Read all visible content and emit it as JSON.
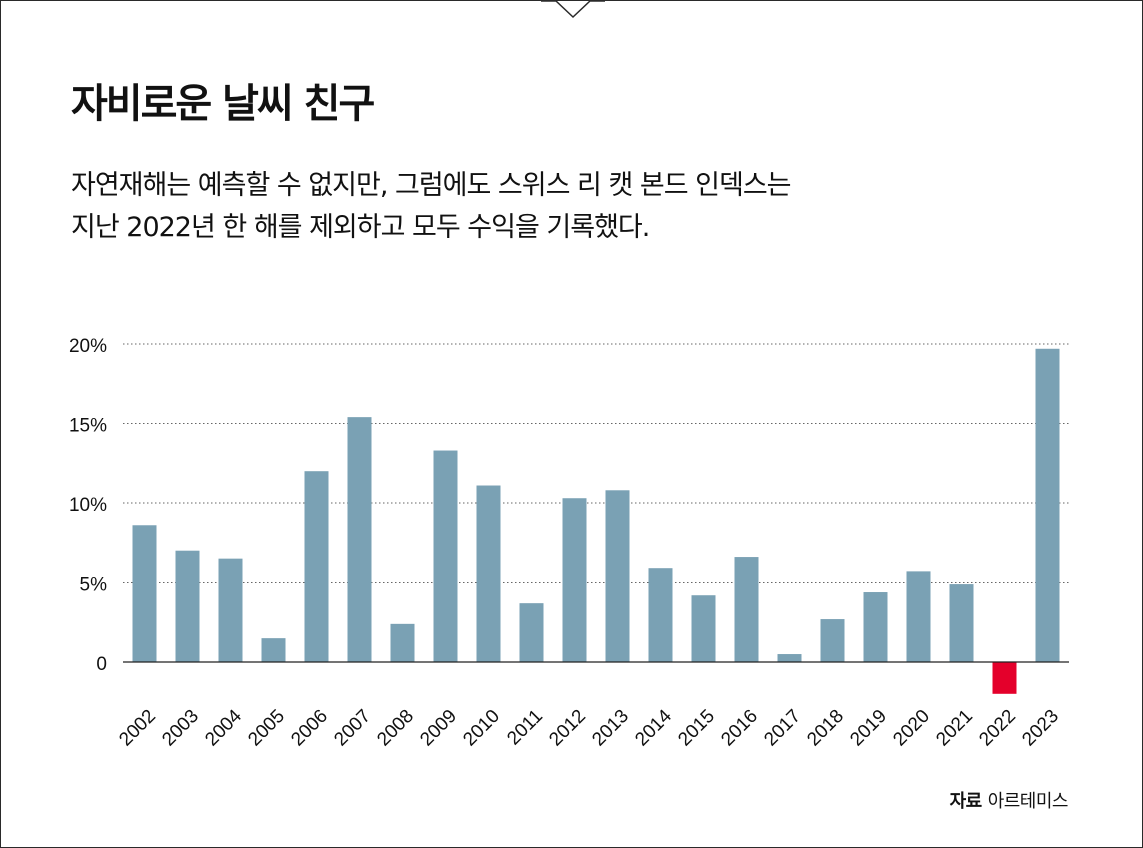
{
  "title": "자비로운 날씨 친구",
  "subtitle_lines": [
    "자연재해는 예측할 수 없지만, 그럼에도 스위스 리 캣 본드 인덱스는",
    "지난 2022년 한 해를 제외하고 모두 수익을 기록했다."
  ],
  "source": {
    "label": "자료",
    "text": "아르테미스"
  },
  "colors": {
    "positive": "#7aa1b4",
    "negative": "#e4002b",
    "text": "#111111",
    "grid": "#666666"
  },
  "chart_data": {
    "type": "bar",
    "title": "",
    "xlabel": "",
    "ylabel": "",
    "categories": [
      "2002",
      "2003",
      "2004",
      "2005",
      "2006",
      "2007",
      "2008",
      "2009",
      "2010",
      "2011",
      "2012",
      "2013",
      "2014",
      "2015",
      "2016",
      "2017",
      "2018",
      "2019",
      "2020",
      "2021",
      "2022",
      "2023"
    ],
    "values": [
      8.6,
      7.0,
      6.5,
      1.5,
      12.0,
      15.4,
      2.4,
      13.3,
      11.1,
      3.7,
      10.3,
      10.8,
      5.9,
      4.2,
      6.6,
      0.5,
      2.7,
      4.4,
      5.7,
      4.9,
      -2.0,
      19.7
    ],
    "ylim": [
      -2.5,
      20
    ],
    "yticks": [
      0,
      5,
      10,
      15,
      20
    ],
    "ytick_labels": [
      "0",
      "5%",
      "10%",
      "15%",
      "20%"
    ],
    "grid": true,
    "gridline_style": "dotted",
    "legend": "none"
  }
}
